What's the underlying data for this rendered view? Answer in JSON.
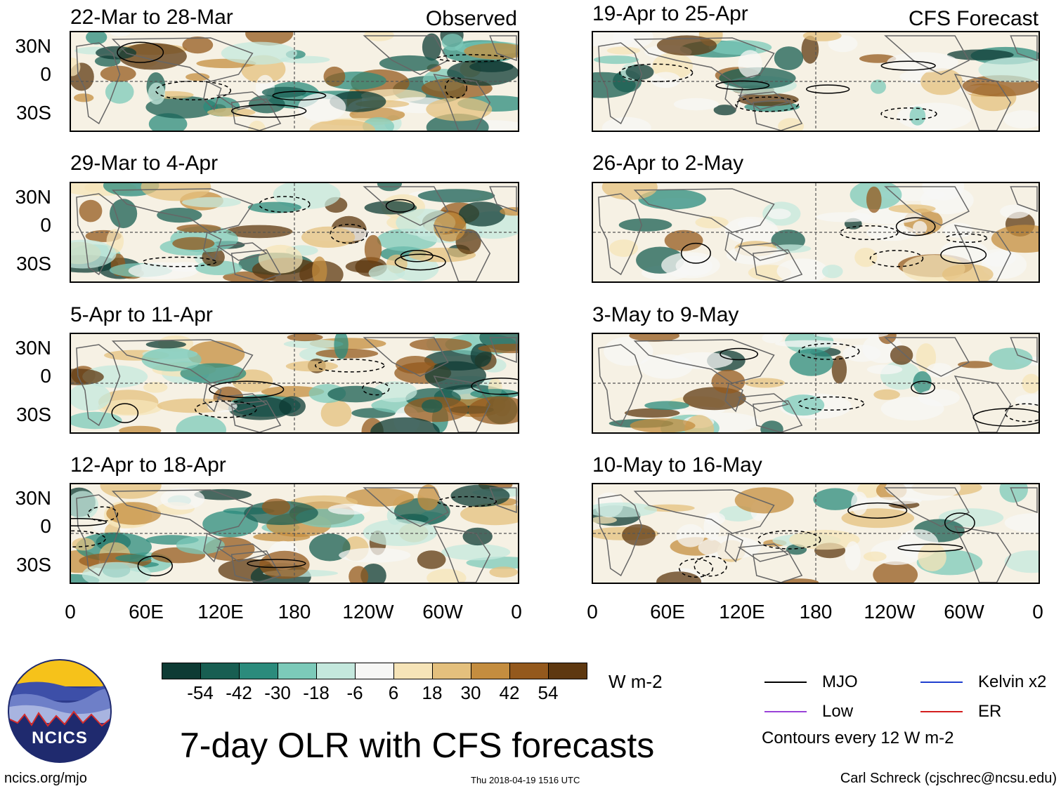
{
  "observed_label": "Observed",
  "forecast_label": "CFS Forecast",
  "observed_panels": [
    {
      "title": "22-Mar to 28-Mar"
    },
    {
      "title": "29-Mar to 4-Apr"
    },
    {
      "title": "5-Apr to 11-Apr"
    },
    {
      "title": "12-Apr to 18-Apr"
    }
  ],
  "forecast_panels": [
    {
      "title": "19-Apr to 25-Apr"
    },
    {
      "title": "26-Apr to 2-May"
    },
    {
      "title": "3-May to 9-May"
    },
    {
      "title": "10-May to 16-May"
    }
  ],
  "y_labels": [
    "30N",
    "0",
    "30S"
  ],
  "x_labels": [
    "0",
    "60E",
    "120E",
    "180",
    "120W",
    "60W",
    "0"
  ],
  "colorbar": {
    "colors": [
      "#0d3b34",
      "#185e52",
      "#2b8b7c",
      "#7ccab9",
      "#c4e8dd",
      "#f7f7f5",
      "#f6e4b8",
      "#e4c07d",
      "#c48d3f",
      "#94591d",
      "#5e3810"
    ],
    "labels": [
      "-54",
      "-42",
      "-30",
      "-18",
      "-6",
      "6",
      "18",
      "30",
      "42",
      "54"
    ],
    "units": "W m-2"
  },
  "legend": {
    "mjo": {
      "label": "MJO",
      "color": "#000000"
    },
    "kelvin": {
      "label": "Kelvin x2",
      "color": "#1f3fcf"
    },
    "low": {
      "label": "Low",
      "color": "#9a42d8"
    },
    "er": {
      "label": "ER",
      "color": "#d41f1f"
    },
    "contours_note": "Contours every 12 W m-2"
  },
  "main_title": "7-day OLR with CFS forecasts",
  "logo_text": "NCICS",
  "footer": {
    "website": "ncics.org/mjo",
    "timestamp": "Thu 2018-04-19 1516 UTC",
    "credit": "Carl Schreck (cjschrec@ncsu.edu)"
  }
}
